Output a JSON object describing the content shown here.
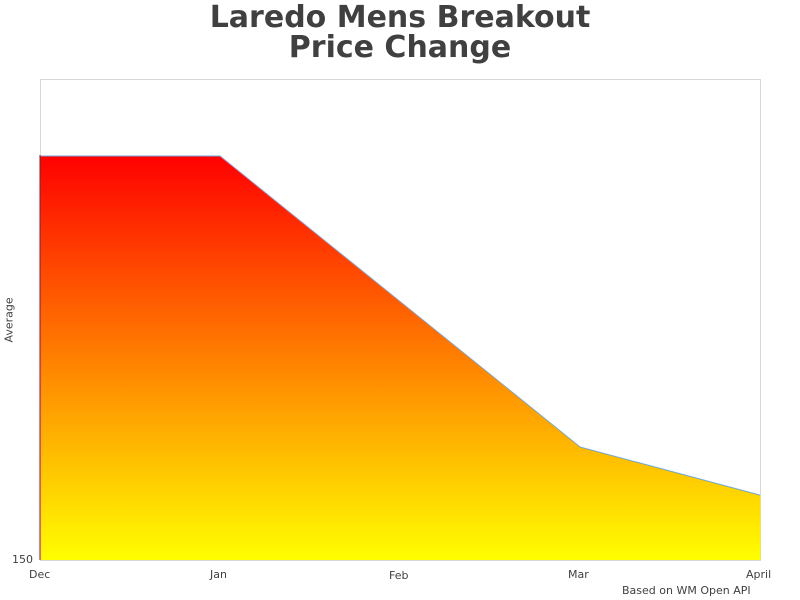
{
  "chart_data": {
    "type": "area",
    "title": "Laredo Mens Breakout Price Change",
    "title_lines": [
      "Laredo Mens Breakout",
      "Price Change"
    ],
    "xlabel": "",
    "ylabel": "Average",
    "x": [
      "Dec",
      "Jan",
      "Feb",
      "Mar",
      "April"
    ],
    "series": [
      {
        "name": "Average",
        "points": [
          {
            "x": "Dec",
            "y_frac": 0.84
          },
          {
            "x": "Jan",
            "y_frac": 0.84
          },
          {
            "x": "Mar",
            "y_frac": 0.235
          },
          {
            "x": "April",
            "y_frac": 0.135
          }
        ],
        "note": "No data point at Feb; values shown as fraction of plot height above axis minimum 150 (no other y ticks visible)"
      }
    ],
    "y_ticks": [
      "150"
    ],
    "ylim_min": 150,
    "grid": false,
    "legend": "none",
    "fill": {
      "gradient_top": "#ff0000",
      "gradient_bottom": "#ffff00"
    },
    "line_color": "#6fa8dc",
    "credit": "Based on WM Open API"
  }
}
